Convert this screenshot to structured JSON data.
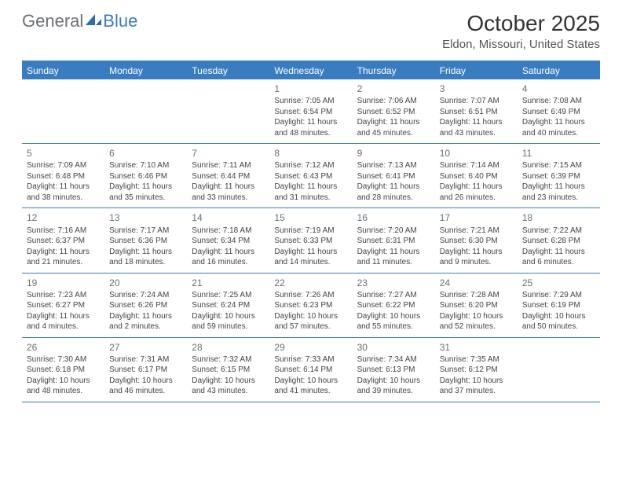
{
  "logo": {
    "prefix": "General",
    "suffix": "Blue"
  },
  "title": "October 2025",
  "location": "Eldon, Missouri, United States",
  "header_bg": "#3a7cc0",
  "day_names": [
    "Sunday",
    "Monday",
    "Tuesday",
    "Wednesday",
    "Thursday",
    "Friday",
    "Saturday"
  ],
  "weeks": [
    [
      null,
      null,
      null,
      {
        "n": "1",
        "sr": "Sunrise: 7:05 AM",
        "ss": "Sunset: 6:54 PM",
        "d1": "Daylight: 11 hours",
        "d2": "and 48 minutes."
      },
      {
        "n": "2",
        "sr": "Sunrise: 7:06 AM",
        "ss": "Sunset: 6:52 PM",
        "d1": "Daylight: 11 hours",
        "d2": "and 45 minutes."
      },
      {
        "n": "3",
        "sr": "Sunrise: 7:07 AM",
        "ss": "Sunset: 6:51 PM",
        "d1": "Daylight: 11 hours",
        "d2": "and 43 minutes."
      },
      {
        "n": "4",
        "sr": "Sunrise: 7:08 AM",
        "ss": "Sunset: 6:49 PM",
        "d1": "Daylight: 11 hours",
        "d2": "and 40 minutes."
      }
    ],
    [
      {
        "n": "5",
        "sr": "Sunrise: 7:09 AM",
        "ss": "Sunset: 6:48 PM",
        "d1": "Daylight: 11 hours",
        "d2": "and 38 minutes."
      },
      {
        "n": "6",
        "sr": "Sunrise: 7:10 AM",
        "ss": "Sunset: 6:46 PM",
        "d1": "Daylight: 11 hours",
        "d2": "and 35 minutes."
      },
      {
        "n": "7",
        "sr": "Sunrise: 7:11 AM",
        "ss": "Sunset: 6:44 PM",
        "d1": "Daylight: 11 hours",
        "d2": "and 33 minutes."
      },
      {
        "n": "8",
        "sr": "Sunrise: 7:12 AM",
        "ss": "Sunset: 6:43 PM",
        "d1": "Daylight: 11 hours",
        "d2": "and 31 minutes."
      },
      {
        "n": "9",
        "sr": "Sunrise: 7:13 AM",
        "ss": "Sunset: 6:41 PM",
        "d1": "Daylight: 11 hours",
        "d2": "and 28 minutes."
      },
      {
        "n": "10",
        "sr": "Sunrise: 7:14 AM",
        "ss": "Sunset: 6:40 PM",
        "d1": "Daylight: 11 hours",
        "d2": "and 26 minutes."
      },
      {
        "n": "11",
        "sr": "Sunrise: 7:15 AM",
        "ss": "Sunset: 6:39 PM",
        "d1": "Daylight: 11 hours",
        "d2": "and 23 minutes."
      }
    ],
    [
      {
        "n": "12",
        "sr": "Sunrise: 7:16 AM",
        "ss": "Sunset: 6:37 PM",
        "d1": "Daylight: 11 hours",
        "d2": "and 21 minutes."
      },
      {
        "n": "13",
        "sr": "Sunrise: 7:17 AM",
        "ss": "Sunset: 6:36 PM",
        "d1": "Daylight: 11 hours",
        "d2": "and 18 minutes."
      },
      {
        "n": "14",
        "sr": "Sunrise: 7:18 AM",
        "ss": "Sunset: 6:34 PM",
        "d1": "Daylight: 11 hours",
        "d2": "and 16 minutes."
      },
      {
        "n": "15",
        "sr": "Sunrise: 7:19 AM",
        "ss": "Sunset: 6:33 PM",
        "d1": "Daylight: 11 hours",
        "d2": "and 14 minutes."
      },
      {
        "n": "16",
        "sr": "Sunrise: 7:20 AM",
        "ss": "Sunset: 6:31 PM",
        "d1": "Daylight: 11 hours",
        "d2": "and 11 minutes."
      },
      {
        "n": "17",
        "sr": "Sunrise: 7:21 AM",
        "ss": "Sunset: 6:30 PM",
        "d1": "Daylight: 11 hours",
        "d2": "and 9 minutes."
      },
      {
        "n": "18",
        "sr": "Sunrise: 7:22 AM",
        "ss": "Sunset: 6:28 PM",
        "d1": "Daylight: 11 hours",
        "d2": "and 6 minutes."
      }
    ],
    [
      {
        "n": "19",
        "sr": "Sunrise: 7:23 AM",
        "ss": "Sunset: 6:27 PM",
        "d1": "Daylight: 11 hours",
        "d2": "and 4 minutes."
      },
      {
        "n": "20",
        "sr": "Sunrise: 7:24 AM",
        "ss": "Sunset: 6:26 PM",
        "d1": "Daylight: 11 hours",
        "d2": "and 2 minutes."
      },
      {
        "n": "21",
        "sr": "Sunrise: 7:25 AM",
        "ss": "Sunset: 6:24 PM",
        "d1": "Daylight: 10 hours",
        "d2": "and 59 minutes."
      },
      {
        "n": "22",
        "sr": "Sunrise: 7:26 AM",
        "ss": "Sunset: 6:23 PM",
        "d1": "Daylight: 10 hours",
        "d2": "and 57 minutes."
      },
      {
        "n": "23",
        "sr": "Sunrise: 7:27 AM",
        "ss": "Sunset: 6:22 PM",
        "d1": "Daylight: 10 hours",
        "d2": "and 55 minutes."
      },
      {
        "n": "24",
        "sr": "Sunrise: 7:28 AM",
        "ss": "Sunset: 6:20 PM",
        "d1": "Daylight: 10 hours",
        "d2": "and 52 minutes."
      },
      {
        "n": "25",
        "sr": "Sunrise: 7:29 AM",
        "ss": "Sunset: 6:19 PM",
        "d1": "Daylight: 10 hours",
        "d2": "and 50 minutes."
      }
    ],
    [
      {
        "n": "26",
        "sr": "Sunrise: 7:30 AM",
        "ss": "Sunset: 6:18 PM",
        "d1": "Daylight: 10 hours",
        "d2": "and 48 minutes."
      },
      {
        "n": "27",
        "sr": "Sunrise: 7:31 AM",
        "ss": "Sunset: 6:17 PM",
        "d1": "Daylight: 10 hours",
        "d2": "and 46 minutes."
      },
      {
        "n": "28",
        "sr": "Sunrise: 7:32 AM",
        "ss": "Sunset: 6:15 PM",
        "d1": "Daylight: 10 hours",
        "d2": "and 43 minutes."
      },
      {
        "n": "29",
        "sr": "Sunrise: 7:33 AM",
        "ss": "Sunset: 6:14 PM",
        "d1": "Daylight: 10 hours",
        "d2": "and 41 minutes."
      },
      {
        "n": "30",
        "sr": "Sunrise: 7:34 AM",
        "ss": "Sunset: 6:13 PM",
        "d1": "Daylight: 10 hours",
        "d2": "and 39 minutes."
      },
      {
        "n": "31",
        "sr": "Sunrise: 7:35 AM",
        "ss": "Sunset: 6:12 PM",
        "d1": "Daylight: 10 hours",
        "d2": "and 37 minutes."
      },
      null
    ]
  ]
}
